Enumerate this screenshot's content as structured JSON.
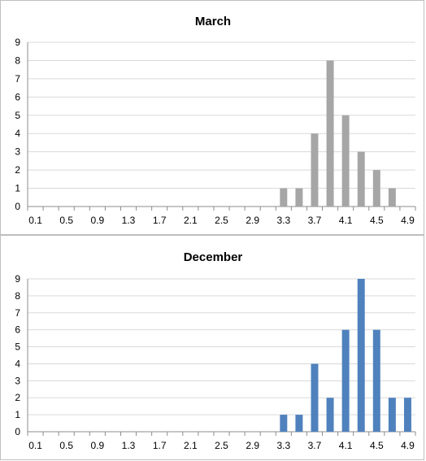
{
  "chart_data": [
    {
      "type": "bar",
      "title": "March",
      "color": "#a6a6a6",
      "categories": [
        "0.1",
        "0.3",
        "0.5",
        "0.7",
        "0.9",
        "1.1",
        "1.3",
        "1.5",
        "1.7",
        "1.9",
        "2.1",
        "2.3",
        "2.5",
        "2.7",
        "2.9",
        "3.1",
        "3.3",
        "3.5",
        "3.7",
        "3.9",
        "4.1",
        "4.3",
        "4.5",
        "4.7",
        "4.9"
      ],
      "x_tick_labels": [
        "0.1",
        "0.5",
        "0.9",
        "1.3",
        "1.7",
        "2.1",
        "2.5",
        "2.9",
        "3.3",
        "3.7",
        "4.1",
        "4.5",
        "4.9"
      ],
      "values": [
        0,
        0,
        0,
        0,
        0,
        0,
        0,
        0,
        0,
        0,
        0,
        0,
        0,
        0,
        0,
        0,
        1,
        1,
        4,
        8,
        5,
        3,
        2,
        1,
        0
      ],
      "ylim": [
        0,
        9
      ],
      "y_ticks": [
        0,
        1,
        2,
        3,
        4,
        5,
        6,
        7,
        8,
        9
      ],
      "grid": true,
      "xlabel": "",
      "ylabel": ""
    },
    {
      "type": "bar",
      "title": "December",
      "color": "#4f81bd",
      "categories": [
        "0.1",
        "0.3",
        "0.5",
        "0.7",
        "0.9",
        "1.1",
        "1.3",
        "1.5",
        "1.7",
        "1.9",
        "2.1",
        "2.3",
        "2.5",
        "2.7",
        "2.9",
        "3.1",
        "3.3",
        "3.5",
        "3.7",
        "3.9",
        "4.1",
        "4.3",
        "4.5",
        "4.7",
        "4.9"
      ],
      "x_tick_labels": [
        "0.1",
        "0.5",
        "0.9",
        "1.3",
        "1.7",
        "2.1",
        "2.5",
        "2.9",
        "3.3",
        "3.7",
        "4.1",
        "4.5",
        "4.9"
      ],
      "values": [
        0,
        0,
        0,
        0,
        0,
        0,
        0,
        0,
        0,
        0,
        0,
        0,
        0,
        0,
        0,
        0,
        1,
        1,
        4,
        2,
        6,
        9,
        6,
        2,
        2
      ],
      "ylim": [
        0,
        9
      ],
      "y_ticks": [
        0,
        1,
        2,
        3,
        4,
        5,
        6,
        7,
        8,
        9
      ],
      "grid": true,
      "xlabel": "",
      "ylabel": ""
    }
  ]
}
